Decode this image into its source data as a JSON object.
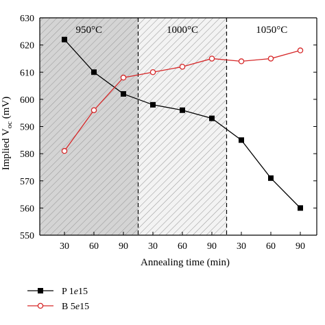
{
  "chart_data": {
    "type": "line",
    "title": "",
    "xlabel": "Annealing time (min)",
    "ylabel": "Implied V",
    "ylabel_sub": "oc",
    "ylabel_unit": "(mV)",
    "ylim": [
      550,
      630
    ],
    "yticks": [
      550,
      560,
      570,
      580,
      590,
      600,
      610,
      620,
      630
    ],
    "categories": [
      "30",
      "60",
      "90",
      "30",
      "60",
      "90",
      "30",
      "60",
      "90"
    ],
    "regions": [
      {
        "label": "950°C",
        "hatched": true,
        "shade": "#d4d4d4"
      },
      {
        "label": "1000°C",
        "hatched": true,
        "shade": "#f3f3f3"
      },
      {
        "label": "1050°C",
        "hatched": false,
        "shade": "#ffffff"
      }
    ],
    "series": [
      {
        "name_main": "P 1",
        "name_italic": "e",
        "name_rest": "15",
        "marker": "square-filled",
        "color": "#000000",
        "values": [
          622,
          610,
          602,
          598,
          596,
          593,
          585,
          571,
          560
        ]
      },
      {
        "name_main": "B 5",
        "name_italic": "e",
        "name_rest": "15",
        "marker": "circle-open",
        "color": "#d62728",
        "values": [
          581,
          596,
          608,
          610,
          612,
          615,
          614,
          615,
          618
        ]
      }
    ],
    "grid": false,
    "legend_position": "bottom-left"
  }
}
